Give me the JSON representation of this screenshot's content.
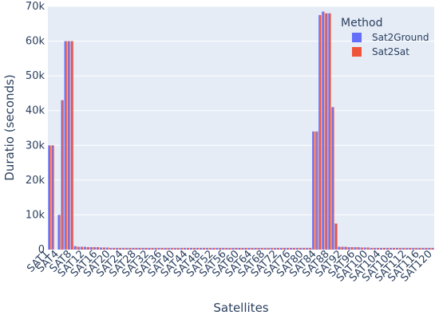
{
  "chart_data": {
    "type": "bar",
    "barmode": "group",
    "xlabel": "Satellites",
    "ylabel": "Duratio (seconds)",
    "ylim": [
      0,
      70000
    ],
    "yticks": [
      0,
      10000,
      20000,
      30000,
      40000,
      50000,
      60000,
      70000
    ],
    "ytick_labels": [
      "0",
      "10k",
      "20k",
      "30k",
      "40k",
      "50k",
      "60k",
      "70k"
    ],
    "grid": true,
    "plot_background": "#e5ecf6",
    "legend": {
      "title": "Method",
      "placement": "top-right"
    },
    "series_colors": {
      "Sat2Ground": "#636efa",
      "Sat2Sat": "#ef553b"
    },
    "categories": [
      "SAT1",
      "SAT2",
      "SAT3",
      "SAT4",
      "SAT5",
      "SAT6",
      "SAT7",
      "SAT8",
      "SAT9",
      "SAT10",
      "SAT11",
      "SAT12",
      "SAT13",
      "SAT14",
      "SAT15",
      "SAT16",
      "SAT17",
      "SAT18",
      "SAT19",
      "SAT20",
      "SAT21",
      "SAT22",
      "SAT23",
      "SAT24",
      "SAT25",
      "SAT26",
      "SAT27",
      "SAT28",
      "SAT29",
      "SAT30",
      "SAT31",
      "SAT32",
      "SAT33",
      "SAT34",
      "SAT35",
      "SAT36",
      "SAT37",
      "SAT38",
      "SAT39",
      "SAT40",
      "SAT41",
      "SAT42",
      "SAT43",
      "SAT44",
      "SAT45",
      "SAT46",
      "SAT47",
      "SAT48",
      "SAT49",
      "SAT50",
      "SAT51",
      "SAT52",
      "SAT53",
      "SAT54",
      "SAT55",
      "SAT56",
      "SAT57",
      "SAT58",
      "SAT59",
      "SAT60",
      "SAT61",
      "SAT62",
      "SAT63",
      "SAT64",
      "SAT65",
      "SAT66",
      "SAT67",
      "SAT68",
      "SAT69",
      "SAT70",
      "SAT71",
      "SAT72",
      "SAT73",
      "SAT74",
      "SAT75",
      "SAT76",
      "SAT77",
      "SAT78",
      "SAT79",
      "SAT80",
      "SAT81",
      "SAT82",
      "SAT83",
      "SAT84",
      "SAT85",
      "SAT86",
      "SAT87",
      "SAT88",
      "SAT89",
      "SAT90",
      "SAT91",
      "SAT92",
      "SAT93",
      "SAT94",
      "SAT95",
      "SAT96",
      "SAT97",
      "SAT98",
      "SAT99",
      "SAT100",
      "SAT101",
      "SAT102",
      "SAT103",
      "SAT104",
      "SAT105",
      "SAT106",
      "SAT107",
      "SAT108",
      "SAT109",
      "SAT110",
      "SAT111",
      "SAT112",
      "SAT113",
      "SAT114",
      "SAT115",
      "SAT116",
      "SAT117",
      "SAT118",
      "SAT119",
      "SAT120"
    ],
    "tick_labels_shown": [
      "SAT1",
      "SAT4",
      "SAT8",
      "SAT12",
      "SAT16",
      "SAT20",
      "SAT24",
      "SAT28",
      "SAT32",
      "SAT36",
      "SAT40",
      "SAT44",
      "SAT48",
      "SAT52",
      "SAT56",
      "SAT60",
      "SAT64",
      "SAT68",
      "SAT72",
      "SAT76",
      "SAT80",
      "SAT84",
      "SAT88",
      "SAT92",
      "SAT96",
      "SAT100",
      "SAT104",
      "SAT108",
      "SAT112",
      "SAT116",
      "SAT120"
    ],
    "series": [
      {
        "name": "Sat2Ground",
        "values": [
          30000,
          30000,
          0,
          10000,
          43000,
          60000,
          60000,
          60000,
          1000,
          800,
          800,
          800,
          700,
          700,
          700,
          700,
          600,
          600,
          600,
          500,
          500,
          500,
          500,
          500,
          500,
          500,
          500,
          500,
          500,
          500,
          500,
          500,
          500,
          500,
          500,
          500,
          500,
          500,
          500,
          500,
          500,
          500,
          500,
          500,
          500,
          500,
          500,
          500,
          500,
          500,
          500,
          500,
          500,
          500,
          500,
          500,
          500,
          500,
          500,
          500,
          500,
          500,
          500,
          500,
          500,
          500,
          500,
          500,
          500,
          500,
          500,
          500,
          500,
          500,
          500,
          500,
          500,
          500,
          500,
          500,
          500,
          500,
          34000,
          34000,
          67500,
          68500,
          68000,
          68000,
          41000,
          7500,
          800,
          800,
          800,
          700,
          700,
          700,
          700,
          600,
          600,
          600,
          500,
          500,
          500,
          500,
          500,
          500,
          500,
          500,
          500,
          500,
          500,
          500,
          500,
          500,
          500,
          500,
          500,
          500,
          500,
          500
        ]
      },
      {
        "name": "Sat2Sat",
        "values": [
          30000,
          30000,
          0,
          10000,
          43000,
          60000,
          60000,
          60000,
          1000,
          800,
          800,
          800,
          700,
          700,
          700,
          700,
          600,
          600,
          600,
          500,
          500,
          500,
          500,
          500,
          500,
          500,
          500,
          500,
          500,
          500,
          500,
          500,
          500,
          500,
          500,
          500,
          500,
          500,
          500,
          500,
          500,
          500,
          500,
          500,
          500,
          500,
          500,
          500,
          500,
          500,
          500,
          500,
          500,
          500,
          500,
          500,
          500,
          500,
          500,
          500,
          500,
          500,
          500,
          500,
          500,
          500,
          500,
          500,
          500,
          500,
          500,
          500,
          500,
          500,
          500,
          500,
          500,
          500,
          500,
          500,
          500,
          500,
          34000,
          34000,
          67500,
          68500,
          68000,
          68000,
          41000,
          7500,
          800,
          800,
          800,
          700,
          700,
          700,
          700,
          600,
          600,
          600,
          500,
          500,
          500,
          500,
          500,
          500,
          500,
          500,
          500,
          500,
          500,
          500,
          500,
          500,
          500,
          500,
          500,
          500,
          500,
          500
        ]
      }
    ]
  }
}
